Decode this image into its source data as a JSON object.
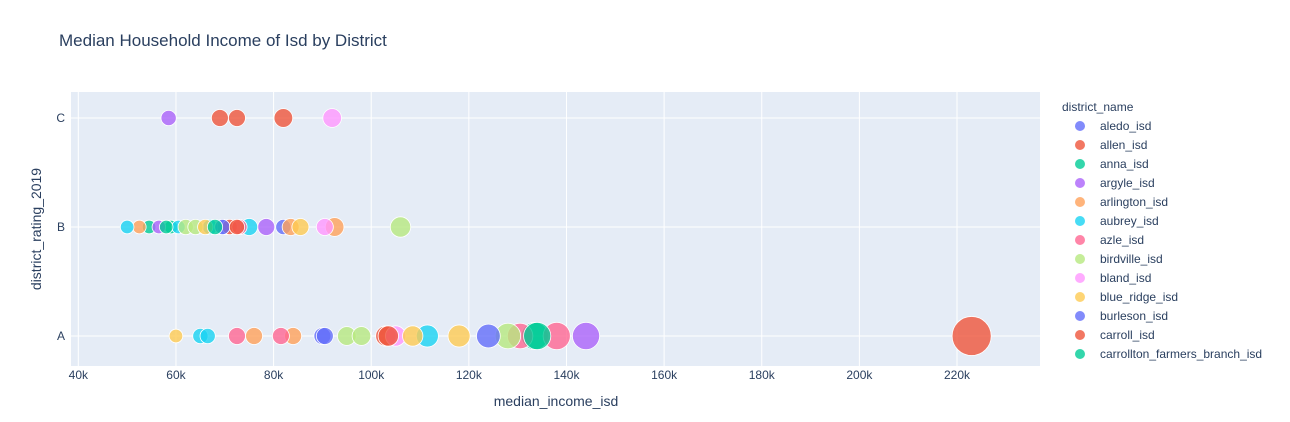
{
  "chart_data": {
    "type": "scatter",
    "title": "Median Household Income of Isd by District",
    "xlabel": "median_income_isd",
    "ylabel": "district_rating_2019",
    "xlim": [
      38500,
      237000
    ],
    "x_ticks": [
      40000,
      60000,
      80000,
      100000,
      120000,
      140000,
      160000,
      180000,
      200000,
      220000
    ],
    "x_tick_labels": [
      "40k",
      "60k",
      "80k",
      "100k",
      "120k",
      "140k",
      "160k",
      "180k",
      "200k",
      "220k"
    ],
    "y_categories": [
      "A",
      "B",
      "C"
    ],
    "grid": true,
    "legend_title": "district_name",
    "legend_position": "right",
    "series": [
      {
        "name": "aledo_isd",
        "color": "#636efa",
        "points": [
          {
            "x": 90000,
            "y": "A",
            "s": 1.0
          },
          {
            "x": 70000,
            "y": "B",
            "s": 0.9
          },
          {
            "x": 82000,
            "y": "B",
            "s": 0.9
          }
        ]
      },
      {
        "name": "allen_isd",
        "color": "#EF553B",
        "points": [
          {
            "x": 223000,
            "y": "A",
            "s": 2.3
          },
          {
            "x": 103000,
            "y": "A",
            "s": 1.2
          },
          {
            "x": 69000,
            "y": "C",
            "s": 1.0
          },
          {
            "x": 72500,
            "y": "C",
            "s": 1.0
          },
          {
            "x": 82000,
            "y": "C",
            "s": 1.1
          },
          {
            "x": 71000,
            "y": "B",
            "s": 0.9
          }
        ]
      },
      {
        "name": "anna_isd",
        "color": "#00cc96",
        "points": [
          {
            "x": 133500,
            "y": "A",
            "s": 1.6
          },
          {
            "x": 54500,
            "y": "B",
            "s": 0.8
          },
          {
            "x": 59000,
            "y": "B",
            "s": 0.8
          }
        ]
      },
      {
        "name": "argyle_isd",
        "color": "#ab63fa",
        "points": [
          {
            "x": 144000,
            "y": "A",
            "s": 1.6
          },
          {
            "x": 58500,
            "y": "C",
            "s": 0.9
          },
          {
            "x": 56500,
            "y": "B",
            "s": 0.8
          },
          {
            "x": 78500,
            "y": "B",
            "s": 1.0
          }
        ]
      },
      {
        "name": "arlington_isd",
        "color": "#FFA15A",
        "points": [
          {
            "x": 76000,
            "y": "A",
            "s": 1.0
          },
          {
            "x": 84000,
            "y": "A",
            "s": 1.0
          },
          {
            "x": 52500,
            "y": "B",
            "s": 0.8
          },
          {
            "x": 83500,
            "y": "B",
            "s": 1.0
          },
          {
            "x": 92500,
            "y": "B",
            "s": 1.1
          }
        ]
      },
      {
        "name": "aubrey_isd",
        "color": "#19d3f3",
        "points": [
          {
            "x": 65000,
            "y": "A",
            "s": 0.9
          },
          {
            "x": 66500,
            "y": "A",
            "s": 0.9
          },
          {
            "x": 111500,
            "y": "A",
            "s": 1.3
          },
          {
            "x": 50000,
            "y": "B",
            "s": 0.8
          },
          {
            "x": 60500,
            "y": "B",
            "s": 0.8
          },
          {
            "x": 67000,
            "y": "B",
            "s": 0.9
          },
          {
            "x": 75000,
            "y": "B",
            "s": 1.0
          }
        ]
      },
      {
        "name": "azle_isd",
        "color": "#FF6692",
        "points": [
          {
            "x": 72500,
            "y": "A",
            "s": 1.0
          },
          {
            "x": 81500,
            "y": "A",
            "s": 1.0
          },
          {
            "x": 130500,
            "y": "A",
            "s": 1.5
          },
          {
            "x": 138000,
            "y": "A",
            "s": 1.6
          },
          {
            "x": 73000,
            "y": "B",
            "s": 0.9
          }
        ]
      },
      {
        "name": "birdville_isd",
        "color": "#B6E880",
        "points": [
          {
            "x": 95000,
            "y": "A",
            "s": 1.1
          },
          {
            "x": 98000,
            "y": "A",
            "s": 1.1
          },
          {
            "x": 128000,
            "y": "A",
            "s": 1.5
          },
          {
            "x": 62000,
            "y": "B",
            "s": 0.9
          },
          {
            "x": 64000,
            "y": "B",
            "s": 0.9
          },
          {
            "x": 106000,
            "y": "B",
            "s": 1.2
          }
        ]
      },
      {
        "name": "bland_isd",
        "color": "#FF97FF",
        "points": [
          {
            "x": 92000,
            "y": "C",
            "s": 1.1
          },
          {
            "x": 105000,
            "y": "A",
            "s": 1.2
          },
          {
            "x": 90500,
            "y": "B",
            "s": 1.0
          }
        ]
      },
      {
        "name": "blue_ridge_isd",
        "color": "#FECB52",
        "points": [
          {
            "x": 60000,
            "y": "A",
            "s": 0.8
          },
          {
            "x": 108500,
            "y": "A",
            "s": 1.2
          },
          {
            "x": 118000,
            "y": "A",
            "s": 1.3
          },
          {
            "x": 66000,
            "y": "B",
            "s": 0.9
          },
          {
            "x": 85500,
            "y": "B",
            "s": 1.0
          }
        ]
      },
      {
        "name": "burleson_isd",
        "color": "#636efa",
        "points": [
          {
            "x": 90500,
            "y": "A",
            "s": 1.0
          },
          {
            "x": 124000,
            "y": "A",
            "s": 1.4
          },
          {
            "x": 69500,
            "y": "B",
            "s": 0.9
          }
        ]
      },
      {
        "name": "carroll_isd",
        "color": "#EF553B",
        "points": [
          {
            "x": 103500,
            "y": "A",
            "s": 1.2
          },
          {
            "x": 72500,
            "y": "B",
            "s": 0.9
          }
        ]
      },
      {
        "name": "carrollton_farmers_branch_isd",
        "color": "#00cc96",
        "points": [
          {
            "x": 134000,
            "y": "A",
            "s": 1.6
          },
          {
            "x": 58000,
            "y": "B",
            "s": 0.8
          },
          {
            "x": 68000,
            "y": "B",
            "s": 0.9
          }
        ]
      }
    ]
  }
}
